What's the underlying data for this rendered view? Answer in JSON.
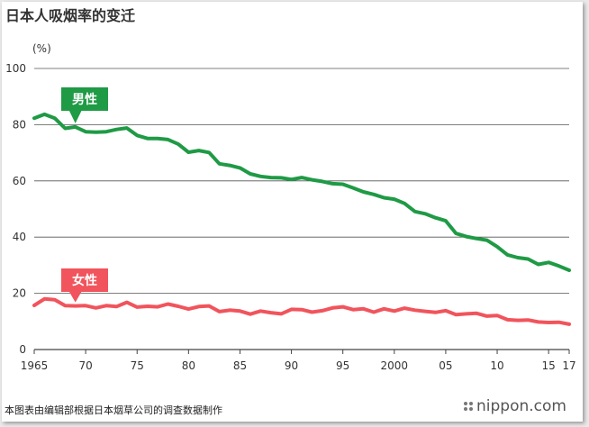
{
  "title": "日本人吸烟率的变迁",
  "unit": "(%)",
  "source": "本图表由编辑部根据日本烟草公司的调查数据制作",
  "brand": "nippon.com",
  "colors": {
    "male": "#1f9a45",
    "female": "#f1545c",
    "grid": "#555555",
    "text": "#333333"
  },
  "chart_data": {
    "type": "line",
    "title": "日本人吸烟率的变迁",
    "ylabel": "(%)",
    "xlabel": "",
    "ylim": [
      0,
      100
    ],
    "yticks": [
      0,
      20,
      40,
      60,
      80,
      100
    ],
    "xlim": [
      1965,
      2017
    ],
    "xticks": [
      {
        "value": 1965,
        "label": "1965"
      },
      {
        "value": 1970,
        "label": "70"
      },
      {
        "value": 1975,
        "label": "75"
      },
      {
        "value": 1980,
        "label": "80"
      },
      {
        "value": 1985,
        "label": "85"
      },
      {
        "value": 1990,
        "label": "90"
      },
      {
        "value": 1995,
        "label": "95"
      },
      {
        "value": 2000,
        "label": "2000"
      },
      {
        "value": 2005,
        "label": "05"
      },
      {
        "value": 2010,
        "label": "10"
      },
      {
        "value": 2015,
        "label": "15"
      },
      {
        "value": 2017,
        "label": "17"
      }
    ],
    "grid": true,
    "x": [
      1965,
      1966,
      1967,
      1968,
      1969,
      1970,
      1971,
      1972,
      1973,
      1974,
      1975,
      1976,
      1977,
      1978,
      1979,
      1980,
      1981,
      1982,
      1983,
      1984,
      1985,
      1986,
      1987,
      1988,
      1989,
      1990,
      1991,
      1992,
      1993,
      1994,
      1995,
      1996,
      1997,
      1998,
      1999,
      2000,
      2001,
      2002,
      2003,
      2004,
      2005,
      2006,
      2007,
      2008,
      2009,
      2010,
      2011,
      2012,
      2013,
      2014,
      2015,
      2016,
      2017
    ],
    "series": [
      {
        "name": "男性",
        "values": [
          82.3,
          83.7,
          82.3,
          78.7,
          79.2,
          77.5,
          77.3,
          77.5,
          78.3,
          78.8,
          76.2,
          75.1,
          75.1,
          74.7,
          73.1,
          70.2,
          70.8,
          70.1,
          66.1,
          65.5,
          64.6,
          62.5,
          61.6,
          61.2,
          61.1,
          60.5,
          61.2,
          60.4,
          59.8,
          59.0,
          58.8,
          57.5,
          56.1,
          55.2,
          54.0,
          53.5,
          52.0,
          49.1,
          48.3,
          46.9,
          45.8,
          41.3,
          40.2,
          39.5,
          38.9,
          36.6,
          33.7,
          32.7,
          32.2,
          30.3,
          31.0,
          29.7,
          28.2
        ]
      },
      {
        "name": "女性",
        "values": [
          15.7,
          18.0,
          17.7,
          15.6,
          15.5,
          15.6,
          14.8,
          15.6,
          15.3,
          16.8,
          15.1,
          15.4,
          15.2,
          16.2,
          15.4,
          14.4,
          15.3,
          15.5,
          13.5,
          14.0,
          13.7,
          12.6,
          13.7,
          13.1,
          12.7,
          14.3,
          14.2,
          13.3,
          13.8,
          14.8,
          15.2,
          14.2,
          14.5,
          13.3,
          14.5,
          13.7,
          14.7,
          14.0,
          13.6,
          13.2,
          13.8,
          12.4,
          12.7,
          12.9,
          11.9,
          12.1,
          10.6,
          10.4,
          10.5,
          9.8,
          9.6,
          9.7,
          9.0
        ]
      }
    ]
  }
}
